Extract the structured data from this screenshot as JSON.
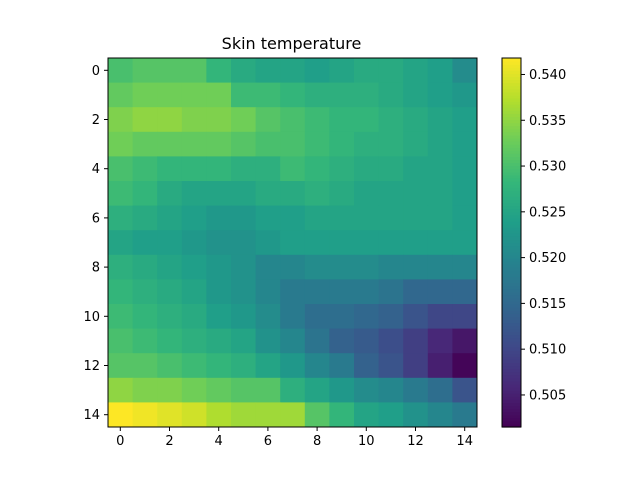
{
  "chart_data": {
    "type": "heatmap",
    "title": "Skin temperature",
    "xlabel": "",
    "ylabel": "",
    "x_ticks": [
      "0",
      "2",
      "4",
      "6",
      "8",
      "10",
      "12",
      "14"
    ],
    "y_ticks": [
      "0",
      "2",
      "4",
      "6",
      "8",
      "10",
      "12",
      "14"
    ],
    "colorbar_ticks": [
      "0.505",
      "0.510",
      "0.515",
      "0.520",
      "0.525",
      "0.530",
      "0.535",
      "0.540"
    ],
    "zlim": [
      0.5015,
      0.5418
    ],
    "colormap": "viridis",
    "rows": 15,
    "cols": 15,
    "values": [
      [
        0.53,
        0.531,
        0.531,
        0.531,
        0.528,
        0.526,
        0.525,
        0.525,
        0.524,
        0.525,
        0.526,
        0.526,
        0.525,
        0.524,
        0.521
      ],
      [
        0.532,
        0.533,
        0.533,
        0.533,
        0.533,
        0.529,
        0.529,
        0.528,
        0.527,
        0.527,
        0.527,
        0.526,
        0.525,
        0.524,
        0.523
      ],
      [
        0.534,
        0.535,
        0.535,
        0.534,
        0.534,
        0.533,
        0.531,
        0.53,
        0.529,
        0.528,
        0.528,
        0.527,
        0.526,
        0.525,
        0.524
      ],
      [
        0.533,
        0.532,
        0.532,
        0.532,
        0.532,
        0.531,
        0.53,
        0.53,
        0.529,
        0.528,
        0.527,
        0.527,
        0.526,
        0.525,
        0.524
      ],
      [
        0.53,
        0.529,
        0.528,
        0.528,
        0.528,
        0.527,
        0.527,
        0.529,
        0.528,
        0.527,
        0.526,
        0.526,
        0.525,
        0.525,
        0.524
      ],
      [
        0.529,
        0.528,
        0.526,
        0.525,
        0.525,
        0.525,
        0.526,
        0.526,
        0.527,
        0.526,
        0.525,
        0.525,
        0.525,
        0.525,
        0.524
      ],
      [
        0.527,
        0.526,
        0.525,
        0.524,
        0.523,
        0.523,
        0.524,
        0.524,
        0.525,
        0.525,
        0.525,
        0.525,
        0.525,
        0.525,
        0.524
      ],
      [
        0.525,
        0.524,
        0.524,
        0.523,
        0.522,
        0.522,
        0.523,
        0.524,
        0.524,
        0.524,
        0.524,
        0.524,
        0.524,
        0.524,
        0.524
      ],
      [
        0.527,
        0.526,
        0.525,
        0.524,
        0.523,
        0.522,
        0.52,
        0.52,
        0.521,
        0.521,
        0.521,
        0.52,
        0.52,
        0.52,
        0.52
      ],
      [
        0.528,
        0.527,
        0.526,
        0.525,
        0.523,
        0.522,
        0.52,
        0.518,
        0.518,
        0.518,
        0.518,
        0.517,
        0.515,
        0.515,
        0.515
      ],
      [
        0.529,
        0.528,
        0.527,
        0.526,
        0.524,
        0.523,
        0.521,
        0.518,
        0.516,
        0.516,
        0.515,
        0.514,
        0.512,
        0.51,
        0.51
      ],
      [
        0.53,
        0.529,
        0.528,
        0.527,
        0.526,
        0.525,
        0.522,
        0.52,
        0.517,
        0.514,
        0.513,
        0.511,
        0.509,
        0.506,
        0.504
      ],
      [
        0.531,
        0.531,
        0.53,
        0.529,
        0.528,
        0.527,
        0.525,
        0.523,
        0.52,
        0.518,
        0.514,
        0.512,
        0.509,
        0.505,
        0.502
      ],
      [
        0.535,
        0.534,
        0.534,
        0.533,
        0.532,
        0.531,
        0.531,
        0.527,
        0.525,
        0.523,
        0.521,
        0.52,
        0.518,
        0.516,
        0.512
      ],
      [
        0.542,
        0.541,
        0.54,
        0.539,
        0.537,
        0.536,
        0.536,
        0.536,
        0.531,
        0.528,
        0.525,
        0.524,
        0.522,
        0.52,
        0.518
      ]
    ]
  }
}
